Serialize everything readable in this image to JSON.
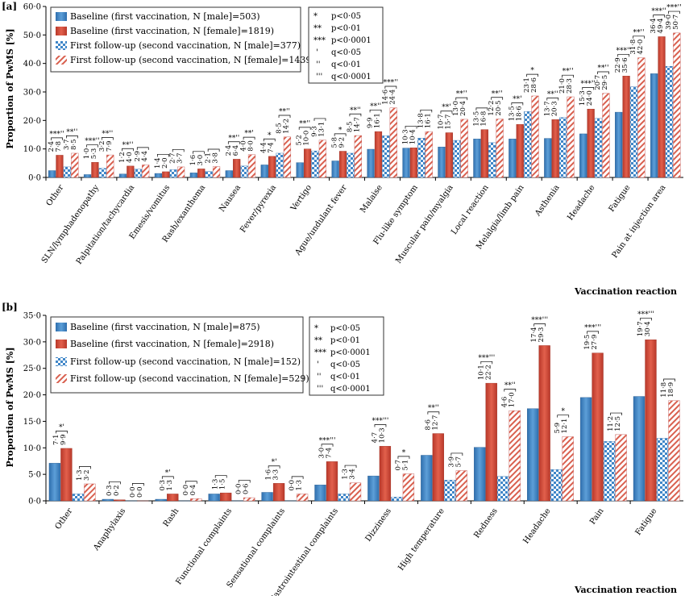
{
  "panels": [
    {
      "panel_label": "[a]",
      "ylabel": "Proportion of PwMS [%]",
      "xlabel": "Vaccination reaction",
      "legend": [
        "Baseline (first vaccination, N [male]=503)",
        "Baseline (first vaccination, N [female]=1819)",
        "First follow-up (second vaccination, N [male]=377)",
        "First follow-up (second vaccination, N [female]=1439)"
      ],
      "significance": [
        {
          "sym": "*",
          "text": "p<0·05"
        },
        {
          "sym": "**",
          "text": "p<0·01"
        },
        {
          "sym": "***",
          "text": "p<0·0001"
        },
        {
          "sym": "'",
          "text": "q<0·05"
        },
        {
          "sym": "''",
          "text": "q<0·01"
        },
        {
          "sym": "'''",
          "text": "q<0·0001"
        }
      ]
    },
    {
      "panel_label": "[b]",
      "ylabel": "Proportion of PwMS [%]",
      "xlabel": "Vaccination reaction",
      "legend": [
        "Baseline (first vaccination, N [male]=875)",
        "Baseline (first vaccination, N [female]=2918)",
        "First follow-up (second vaccination, N [male]=152)",
        "First follow-up (second vaccination, N [female]=529)"
      ],
      "significance": [
        {
          "sym": "*",
          "text": "p<0·05"
        },
        {
          "sym": "**",
          "text": "p<0·01"
        },
        {
          "sym": "***",
          "text": "p<0·0001"
        },
        {
          "sym": "'",
          "text": "q<0·05"
        },
        {
          "sym": "''",
          "text": "q<0·01"
        },
        {
          "sym": "'''",
          "text": "q<0·0001"
        }
      ]
    }
  ],
  "chart_data": [
    {
      "type": "bar",
      "ylim": [
        0,
        60
      ],
      "yticks": [
        "0·0",
        "10·0",
        "20·0",
        "30·0",
        "40·0",
        "50·0",
        "60·0"
      ],
      "categories": [
        "Other",
        "SLN/lymphadenopathy",
        "Palpitation/tachycardia",
        "Emesis/vomitus",
        "Rash/exanthema",
        "Nausea",
        "Fever/pyrexia",
        "Vertigo",
        "Ague/undulant fever",
        "Malaise",
        "Flu-like symptom",
        "Muscular pain/myalgia",
        "Local reaction",
        "Melalgia/limb pain",
        "Asthenia",
        "Headache",
        "Fatigue",
        "Pain at injection area"
      ],
      "series": [
        {
          "name": "Baseline (first vaccination, N [male]=503)",
          "values": [
            2.4,
            1.0,
            1.2,
            1.4,
            1.6,
            2.4,
            4.4,
            5.2,
            5.8,
            9.9,
            10.3,
            10.7,
            13.5,
            13.5,
            13.7,
            15.3,
            22.9,
            36.4
          ]
        },
        {
          "name": "Baseline (first vaccination, N [female]=1819)",
          "values": [
            7.8,
            5.3,
            4.0,
            2.0,
            3.0,
            6.4,
            7.4,
            10.0,
            9.2,
            16.1,
            10.4,
            15.7,
            16.8,
            18.6,
            20.3,
            24.0,
            35.6,
            49.4
          ]
        },
        {
          "name": "First follow-up (second vaccination, N [male]=377)",
          "values": [
            3.7,
            3.2,
            2.9,
            2.7,
            2.1,
            4.0,
            8.5,
            9.3,
            8.5,
            14.6,
            13.8,
            13.0,
            12.2,
            23.1,
            21.0,
            20.7,
            31.8,
            39.0
          ]
        },
        {
          "name": "First follow-up (second vaccination, N [female]=1439)",
          "values": [
            8.5,
            7.9,
            4.4,
            3.7,
            3.8,
            8.0,
            14.2,
            13.1,
            14.7,
            24.4,
            16.1,
            20.4,
            20.5,
            28.6,
            28.3,
            29.5,
            42.0,
            50.7
          ]
        }
      ],
      "value_labels": [
        [
          "2·4",
          "7·8",
          "3·7",
          "8·5"
        ],
        [
          "1·0",
          "5·3",
          "3·2",
          "7·9"
        ],
        [
          "1·2",
          "4·0",
          "2·9",
          "4·4"
        ],
        [
          "1·4",
          "2·0",
          "2·7",
          "3·7"
        ],
        [
          "1·6",
          "3·0",
          "2·1",
          "3·8"
        ],
        [
          "2·4",
          "6·4",
          "4·0",
          "8·0"
        ],
        [
          "4·4",
          "7·4",
          "8·5",
          "14·2"
        ],
        [
          "5·2",
          "10·0",
          "9·3",
          "13·1"
        ],
        [
          "5·8",
          "9·2",
          "8·5",
          "14·7"
        ],
        [
          "9·9",
          "16·1",
          "14·6",
          "24·4"
        ],
        [
          "10·3",
          "10·4",
          "13·8",
          "16·1"
        ],
        [
          "10·7",
          "15·7",
          "13·0",
          "20·4"
        ],
        [
          "13·5",
          "16·8",
          "12·2",
          "20·5"
        ],
        [
          "13·5",
          "18·6",
          "23·1",
          "28·6"
        ],
        [
          "13·7",
          "20·3",
          "21·0",
          "28·3"
        ],
        [
          "15·3",
          "24·0",
          "20·7",
          "29·5"
        ],
        [
          "22·9",
          "35·6",
          "31·8",
          "42·0"
        ],
        [
          "36·4",
          "49·4",
          "39·0",
          "50·7"
        ]
      ],
      "sig_marks": [
        [
          "***''",
          "**''"
        ],
        [
          "***''",
          "**''"
        ],
        [
          "**''",
          ""
        ],
        [
          "",
          ""
        ],
        [
          "",
          ""
        ],
        [
          "**''",
          "**'"
        ],
        [
          "*",
          "**''"
        ],
        [
          "**''",
          ""
        ],
        [
          "*",
          "**''"
        ],
        [
          "**''",
          "***''"
        ],
        [
          "",
          ""
        ],
        [
          "**'",
          "**''"
        ],
        [
          "",
          "**''"
        ],
        [
          "**'",
          "*"
        ],
        [
          "**''",
          "**''"
        ],
        [
          "***''",
          "**''"
        ],
        [
          "***''",
          "**''"
        ],
        [
          "***''",
          "***''"
        ]
      ]
    },
    {
      "type": "bar",
      "ylim": [
        0,
        35
      ],
      "yticks": [
        "0·0",
        "5·0",
        "10·0",
        "15·0",
        "20·0",
        "25·0",
        "30·0",
        "35·0"
      ],
      "categories": [
        "Other",
        "Anaphylaxis",
        "Rash",
        "Functional complaints",
        "Sensational complaints",
        "Gastrointestinal complaints",
        "Dizziness",
        "High temperature",
        "Redness",
        "Headache",
        "Pain",
        "Fatigue"
      ],
      "series": [
        {
          "name": "Baseline (first vaccination, N [male]=875)",
          "values": [
            7.1,
            0.3,
            0.3,
            1.3,
            1.6,
            3.0,
            4.7,
            8.6,
            10.1,
            17.4,
            19.5,
            19.7
          ]
        },
        {
          "name": "Baseline (first vaccination, N [female]=2918)",
          "values": [
            9.9,
            0.2,
            1.3,
            1.5,
            3.3,
            7.4,
            10.3,
            12.7,
            22.2,
            29.3,
            27.9,
            30.4
          ]
        },
        {
          "name": "First follow-up (second vaccination, N [male]=152)",
          "values": [
            1.3,
            0.0,
            0.0,
            0.0,
            0.0,
            1.3,
            0.7,
            3.9,
            4.6,
            5.9,
            11.2,
            11.8
          ]
        },
        {
          "name": "First follow-up (second vaccination, N [female]=529)",
          "values": [
            3.2,
            0.0,
            0.4,
            0.6,
            1.3,
            3.4,
            5.1,
            5.7,
            17.0,
            12.1,
            12.5,
            18.9
          ]
        }
      ],
      "value_labels": [
        [
          "7·1",
          "9·9",
          "1·3",
          "3·2"
        ],
        [
          "0·3",
          "0·2",
          "0·0",
          "0·0"
        ],
        [
          "0·3",
          "1·3",
          "0·0",
          "0·4"
        ],
        [
          "1·3",
          "1·5",
          "0·0",
          "0·6"
        ],
        [
          "1·6",
          "3·3",
          "0·0",
          "1·3"
        ],
        [
          "3·0",
          "7·4",
          "1·3",
          "3·4"
        ],
        [
          "4·7",
          "10·3",
          "0·7",
          "5·1"
        ],
        [
          "8·6",
          "12·7",
          "3·9",
          "5·7"
        ],
        [
          "10·1",
          "22·2",
          "4·6",
          "17·0"
        ],
        [
          "17·4",
          "29·3",
          "5·9",
          "12·1"
        ],
        [
          "19·5",
          "27·9",
          "11·2",
          "12·5"
        ],
        [
          "19·7",
          "30·4",
          "11·8",
          "18·9"
        ]
      ],
      "sig_marks": [
        [
          "*'",
          ""
        ],
        [
          "",
          ""
        ],
        [
          "*'",
          ""
        ],
        [
          "",
          ""
        ],
        [
          "*'",
          ""
        ],
        [
          "***'''",
          ""
        ],
        [
          "***'''",
          "*"
        ],
        [
          "**''",
          ""
        ],
        [
          "***'''",
          "**''"
        ],
        [
          "***'''",
          "*"
        ],
        [
          "***'''",
          ""
        ],
        [
          "***'''",
          ""
        ]
      ]
    }
  ]
}
